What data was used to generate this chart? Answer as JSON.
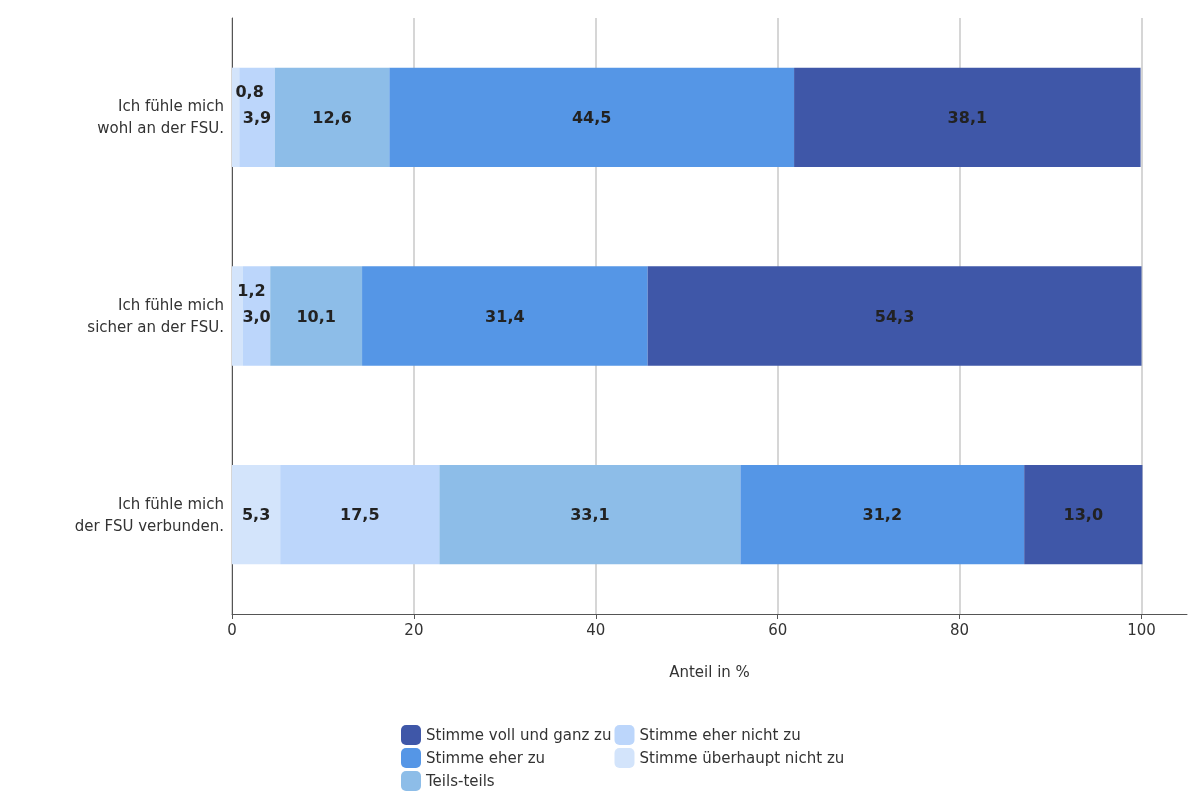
{
  "chart_data": {
    "type": "bar",
    "orientation": "horizontal",
    "stacked": true,
    "categories": [
      "Ich fühle mich\nwohl an der FSU.",
      "Ich fühle mich\nsicher an der FSU.",
      "Ich fühle mich\nder FSU verbunden."
    ],
    "xlabel": "Anteil in %",
    "xlim": [
      0,
      105
    ],
    "xticks": [
      0,
      20,
      40,
      60,
      80,
      100
    ],
    "grid": "x",
    "legend": "bottom",
    "series": [
      {
        "name": "Stimme überhaupt nicht zu",
        "color": "#d3e4fb",
        "values": [
          0.8,
          1.2,
          5.3
        ],
        "value_labels": [
          "0,8",
          "1,2",
          "5,3"
        ]
      },
      {
        "name": "Stimme eher nicht zu",
        "color": "#bcd6fb",
        "values": [
          3.9,
          3.0,
          17.5
        ],
        "value_labels": [
          "3,9",
          "3,0",
          "17,5"
        ]
      },
      {
        "name": "Teils-teils",
        "color": "#8dbde8",
        "values": [
          12.6,
          10.1,
          33.1
        ],
        "value_labels": [
          "12,6",
          "10,1",
          "33,1"
        ]
      },
      {
        "name": "Stimme eher zu",
        "color": "#5596e6",
        "values": [
          44.5,
          31.4,
          31.2
        ],
        "value_labels": [
          "44,5",
          "31,4",
          "31,2"
        ]
      },
      {
        "name": "Stimme voll und ganz zu",
        "color": "#3f57a8",
        "values": [
          38.1,
          54.3,
          13.0
        ],
        "value_labels": [
          "38,1",
          "54,3",
          "13,0"
        ]
      }
    ]
  }
}
